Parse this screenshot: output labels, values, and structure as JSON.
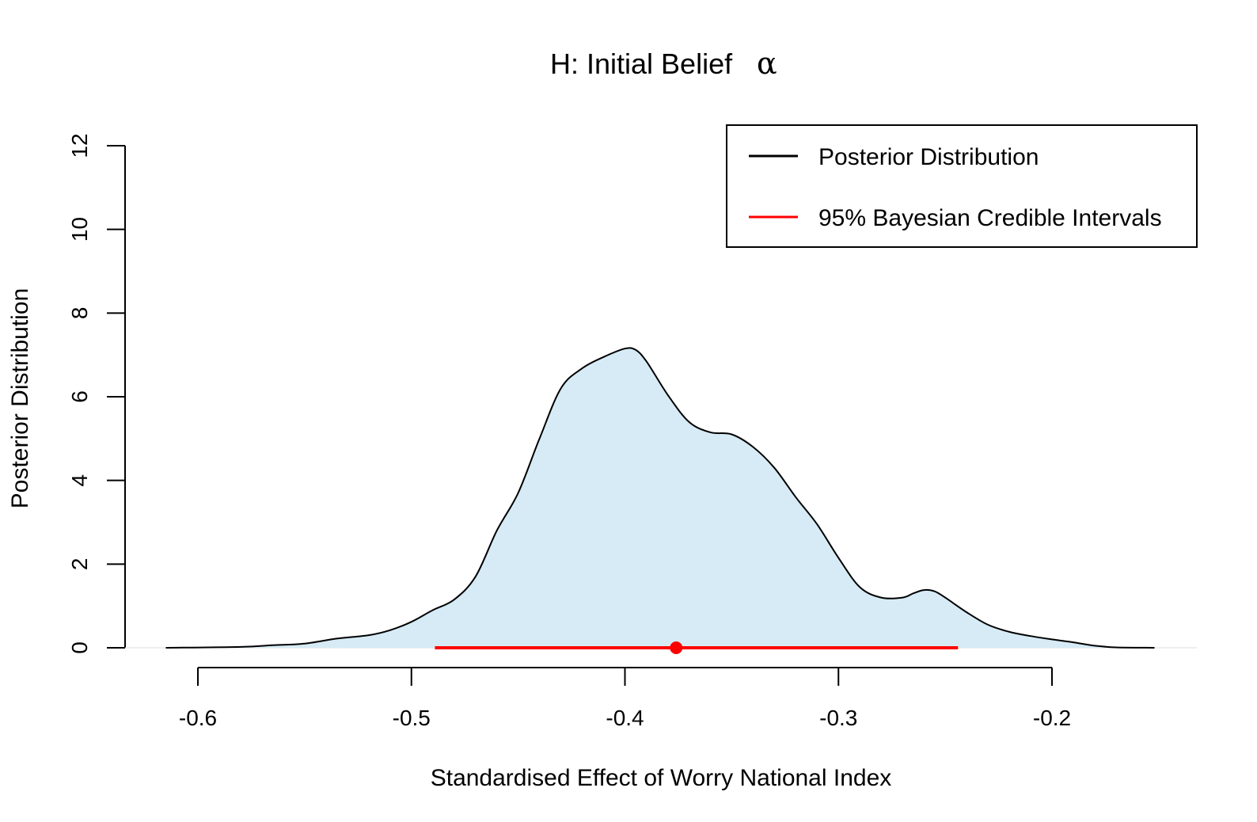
{
  "chart_data": {
    "type": "area",
    "title": "H: Initial Belief",
    "title_symbol": "α",
    "xlabel": "Standardised Effect of Worry National Index",
    "ylabel": "Posterior Distribution",
    "xlim": [
      -0.634,
      -0.134
    ],
    "ylim": [
      0,
      12
    ],
    "x_ticks": [
      -0.6,
      -0.5,
      -0.4,
      -0.3,
      -0.2
    ],
    "x_tick_labels": [
      "-0.6",
      "-0.5",
      "-0.4",
      "-0.3",
      "-0.2"
    ],
    "y_ticks": [
      0,
      2,
      4,
      6,
      8,
      10,
      12
    ],
    "y_tick_labels": [
      "0",
      "2",
      "4",
      "6",
      "8",
      "10",
      "12"
    ],
    "grid": false,
    "legend_position": "top-right",
    "legend": [
      {
        "label": "Posterior Distribution",
        "color": "#000000"
      },
      {
        "label": "95% Bayesian Credible Intervals",
        "color": "#ff0000"
      }
    ],
    "series": [
      {
        "name": "Posterior Distribution",
        "color": "#000000",
        "fill": "#d6ebf5",
        "x": [
          -0.615,
          -0.58,
          -0.565,
          -0.55,
          -0.535,
          -0.52,
          -0.51,
          -0.5,
          -0.49,
          -0.48,
          -0.47,
          -0.46,
          -0.45,
          -0.44,
          -0.43,
          -0.42,
          -0.41,
          -0.4,
          -0.395,
          -0.39,
          -0.38,
          -0.37,
          -0.36,
          -0.35,
          -0.34,
          -0.33,
          -0.32,
          -0.31,
          -0.3,
          -0.29,
          -0.28,
          -0.27,
          -0.265,
          -0.26,
          -0.255,
          -0.25,
          -0.24,
          -0.23,
          -0.22,
          -0.21,
          -0.2,
          -0.19,
          -0.18,
          -0.17,
          -0.152
        ],
        "y": [
          0,
          0.02,
          0.06,
          0.1,
          0.22,
          0.3,
          0.42,
          0.62,
          0.9,
          1.15,
          1.7,
          2.8,
          3.7,
          5.0,
          6.2,
          6.68,
          6.95,
          7.15,
          7.12,
          6.85,
          6.05,
          5.4,
          5.15,
          5.1,
          4.8,
          4.3,
          3.6,
          2.95,
          2.15,
          1.45,
          1.2,
          1.2,
          1.3,
          1.38,
          1.35,
          1.2,
          0.85,
          0.55,
          0.38,
          0.28,
          0.2,
          0.13,
          0.05,
          0.01,
          0
        ]
      }
    ],
    "credible_interval": {
      "name": "95% Bayesian Credible Intervals",
      "color": "#ff0000",
      "lower": -0.489,
      "upper": -0.244,
      "point": -0.376
    }
  }
}
